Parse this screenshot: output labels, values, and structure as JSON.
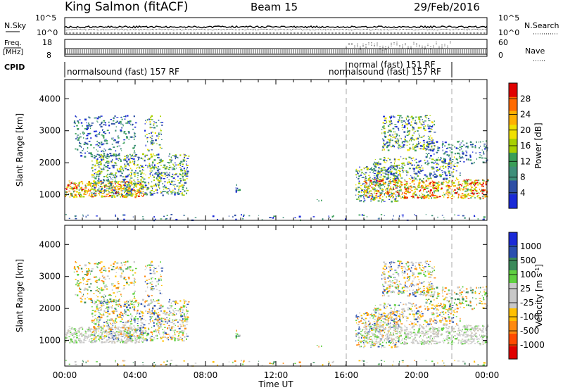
{
  "chart_data": {
    "type": "heatmap",
    "station": "King Salmon (fitACF)",
    "beam": "Beam 15",
    "date": "29/Feb/2016",
    "xlabel": "Time UT",
    "x_ticks": [
      "00:00",
      "04:00",
      "08:00",
      "12:00",
      "16:00",
      "20:00",
      "00:00"
    ],
    "x_range_hours": [
      0,
      24
    ],
    "mode_changes_hours": [
      16.0,
      22.0
    ],
    "top_panels": {
      "nsky_label": "N.Sky",
      "nsearch_label": "N.Search",
      "nsky_ticks": [
        "10^5",
        "10^0"
      ],
      "nsearch_ticks": [
        "10^5",
        "10^0"
      ],
      "freq_label": "Freq.",
      "freq_unit": "[MHz]",
      "freq_ticks": [
        "18",
        "8"
      ],
      "nave_label": "Nave",
      "nave_ticks": [
        "60",
        "0"
      ],
      "cpid_label": "CPID",
      "cpid_segments": [
        {
          "label": "normalsound (fast) 157 RF",
          "start_hour": 0,
          "end_hour": 16
        },
        {
          "label": "normal (fast) 151 RF",
          "start_hour": 16,
          "end_hour": 22
        },
        {
          "label": "normalsound (fast) 157 RF",
          "start_hour": 16,
          "end_hour": 22
        }
      ]
    },
    "panels": [
      {
        "name": "power",
        "ylabel": "Slant Range [km]",
        "y_ticks": [
          1000,
          2000,
          3000,
          4000
        ],
        "ylim": [
          200,
          4600
        ],
        "colorbar_label": "Power [dB]",
        "colorbar_ticks": [
          "28",
          "24",
          "20",
          "16",
          "12",
          "8",
          "4"
        ],
        "colorbar_colors": [
          "#e00000",
          "#ff6a00",
          "#ffb000",
          "#f0e000",
          "#a8d000",
          "#3a9e58",
          "#3f8f7a",
          "#2e4fa5",
          "#1a2ad8"
        ]
      },
      {
        "name": "velocity",
        "ylabel": "Slant Range [km]",
        "y_ticks": [
          1000,
          2000,
          3000,
          4000
        ],
        "ylim": [
          200,
          4600
        ],
        "colorbar_label": "Velocity [m s-1]",
        "colorbar_ticks": [
          "1000",
          "500",
          "100",
          "25",
          "-25",
          "-100",
          "-500",
          "-1000"
        ],
        "colorbar_colors": [
          "#1a2ad8",
          "#2a4fb0",
          "#3a8a5a",
          "#5fd040",
          "#c8c8c8",
          "#c8c8c8",
          "#ffc000",
          "#ff8a10",
          "#ff4a00",
          "#e00000"
        ]
      }
    ],
    "scatter_regions": [
      {
        "t0": 0.0,
        "t1": 4.5,
        "r0": 950,
        "r1": 1450,
        "band": "strong",
        "density": 0.9
      },
      {
        "t0": 1.5,
        "t1": 7.0,
        "r0": 1000,
        "r1": 2300,
        "band": "mid",
        "density": 0.55
      },
      {
        "t0": 0.5,
        "t1": 4.0,
        "r0": 2200,
        "r1": 3500,
        "band": "weak",
        "density": 0.3
      },
      {
        "t0": 4.5,
        "t1": 5.5,
        "r0": 2400,
        "r1": 3500,
        "band": "mid",
        "density": 0.35
      },
      {
        "t0": 9.7,
        "t1": 10.0,
        "r0": 1100,
        "r1": 1350,
        "band": "weak",
        "density": 0.6
      },
      {
        "t0": 14.3,
        "t1": 14.8,
        "r0": 830,
        "r1": 880,
        "band": "weak",
        "density": 0.8
      },
      {
        "t0": 16.5,
        "t1": 19.0,
        "r0": 800,
        "r1": 1900,
        "band": "mid",
        "density": 0.5
      },
      {
        "t0": 17.0,
        "t1": 24.0,
        "r0": 900,
        "r1": 1500,
        "band": "strong",
        "density": 0.75
      },
      {
        "t0": 17.5,
        "t1": 22.5,
        "r0": 1500,
        "r1": 2200,
        "band": "mid",
        "density": 0.45
      },
      {
        "t0": 18.0,
        "t1": 21.0,
        "r0": 2400,
        "r1": 3500,
        "band": "mid",
        "density": 0.55
      },
      {
        "t0": 20.5,
        "t1": 24.0,
        "r0": 2000,
        "r1": 2700,
        "band": "weak",
        "density": 0.35
      },
      {
        "t0": 0.0,
        "t1": 24.0,
        "r0": 220,
        "r1": 400,
        "band": "weak",
        "density": 0.12
      }
    ]
  }
}
